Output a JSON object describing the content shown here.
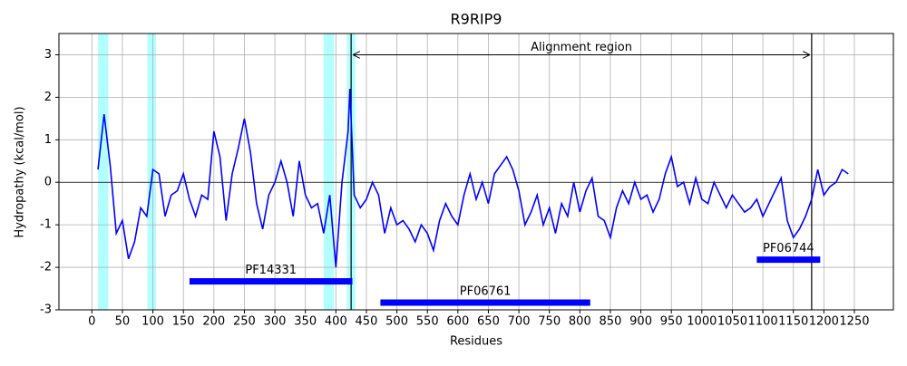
{
  "chart_data": {
    "type": "line",
    "title": "R9RIP9",
    "xlabel": "Residues",
    "ylabel": "Hydropathy (kcal/mol)",
    "x": [
      10,
      20,
      30,
      40,
      50,
      60,
      70,
      80,
      90,
      100,
      110,
      120,
      130,
      140,
      150,
      160,
      170,
      180,
      190,
      200,
      210,
      220,
      230,
      240,
      250,
      260,
      270,
      280,
      290,
      300,
      310,
      320,
      330,
      340,
      350,
      360,
      370,
      380,
      390,
      400,
      410,
      420,
      423,
      430,
      440,
      450,
      460,
      470,
      480,
      490,
      500,
      510,
      520,
      530,
      540,
      550,
      560,
      570,
      580,
      590,
      600,
      610,
      620,
      630,
      640,
      650,
      660,
      670,
      680,
      690,
      700,
      710,
      720,
      730,
      740,
      750,
      760,
      770,
      780,
      790,
      800,
      810,
      820,
      830,
      840,
      850,
      860,
      870,
      880,
      890,
      900,
      910,
      920,
      930,
      940,
      950,
      960,
      970,
      980,
      990,
      1000,
      1010,
      1020,
      1030,
      1040,
      1050,
      1060,
      1070,
      1080,
      1090,
      1100,
      1110,
      1120,
      1130,
      1140,
      1150,
      1160,
      1170,
      1180,
      1190,
      1200,
      1210,
      1220,
      1230,
      1240
    ],
    "values": [
      0.3,
      1.6,
      0.4,
      -1.2,
      -0.9,
      -1.8,
      -1.4,
      -0.6,
      -0.8,
      0.3,
      0.2,
      -0.8,
      -0.3,
      -0.2,
      0.2,
      -0.4,
      -0.8,
      -0.3,
      -0.4,
      1.2,
      0.6,
      -0.9,
      0.2,
      0.8,
      1.5,
      0.7,
      -0.5,
      -1.1,
      -0.3,
      0.0,
      0.5,
      0.0,
      -0.8,
      0.5,
      -0.3,
      -0.6,
      -0.5,
      -1.2,
      -0.3,
      -2.0,
      0.0,
      1.2,
      2.2,
      -0.3,
      -0.6,
      -0.4,
      0.0,
      -0.3,
      -1.2,
      -0.6,
      -1.0,
      -0.9,
      -1.1,
      -1.4,
      -1.0,
      -1.2,
      -1.6,
      -0.9,
      -0.5,
      -0.8,
      -1.0,
      -0.3,
      0.2,
      -0.4,
      0.0,
      -0.5,
      0.2,
      0.4,
      0.6,
      0.3,
      -0.2,
      -1.0,
      -0.7,
      -0.3,
      -1.0,
      -0.6,
      -1.2,
      -0.5,
      -0.8,
      0.0,
      -0.7,
      -0.2,
      0.1,
      -0.8,
      -0.9,
      -1.3,
      -0.6,
      -0.2,
      -0.5,
      0.0,
      -0.4,
      -0.3,
      -0.7,
      -0.4,
      0.2,
      0.6,
      -0.1,
      0.0,
      -0.5,
      0.1,
      -0.4,
      -0.5,
      0.0,
      -0.3,
      -0.6,
      -0.3,
      -0.5,
      -0.7,
      -0.6,
      -0.4,
      -0.8,
      -0.5,
      -0.2,
      0.1,
      -0.9,
      -1.3,
      -1.1,
      -0.8,
      -0.4,
      0.3,
      -0.3,
      -0.1,
      0.0,
      0.3,
      0.2
    ],
    "color": "#0000ff",
    "xlim": [
      -54,
      1314
    ],
    "ylim": [
      -3,
      3.5
    ],
    "xticks": [
      0,
      50,
      100,
      150,
      200,
      250,
      300,
      350,
      400,
      450,
      500,
      550,
      600,
      650,
      700,
      750,
      800,
      850,
      900,
      950,
      1000,
      1050,
      1100,
      1150,
      1200,
      1250
    ],
    "yticks": [
      -3,
      -2,
      -1,
      0,
      1,
      2,
      3
    ],
    "grid": true,
    "hline": 0,
    "spans": [
      [
        10,
        27
      ],
      [
        91,
        105
      ],
      [
        380,
        397
      ],
      [
        418,
        432
      ]
    ],
    "span_color": "#00ffff",
    "vlines": [
      425,
      1180
    ],
    "annotation": {
      "text": "Alignment region",
      "y": 3
    },
    "domains": [
      {
        "label": "PF14331",
        "start": 160,
        "end": 427,
        "y": -2.33
      },
      {
        "label": "PF06761",
        "start": 473,
        "end": 817,
        "y": -2.83
      },
      {
        "label": "PF06744",
        "start": 1090,
        "end": 1194,
        "y": -1.82
      }
    ]
  }
}
